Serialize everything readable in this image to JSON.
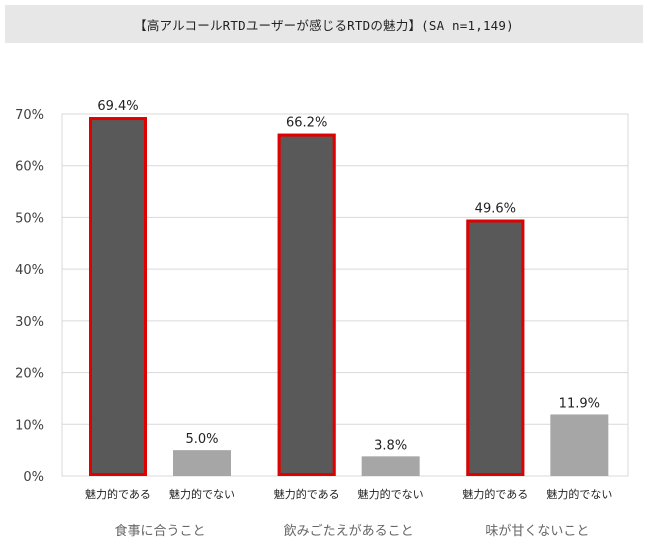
{
  "title": "【高アルコールRTDユーザーが感じるRTDの魅力】(SA n=1,149)",
  "chart_data": {
    "type": "bar",
    "title": "【高アルコールRTDユーザーが感じるRTDの魅力】(SA n=1,149)",
    "ylim": [
      0,
      70
    ],
    "y_ticks": [
      "0%",
      "10%",
      "20%",
      "30%",
      "40%",
      "50%",
      "60%",
      "70%"
    ],
    "grid": true,
    "groups": [
      {
        "label": "食事に合うこと",
        "bars": [
          {
            "label": "魅力的である",
            "value": 69.4,
            "value_label": "69.4%",
            "color": "#595959",
            "highlight": true
          },
          {
            "label": "魅力的でない",
            "value": 5.0,
            "value_label": "5.0%",
            "color": "#a6a6a6",
            "highlight": false
          }
        ]
      },
      {
        "label": "飲みごたえがあること",
        "bars": [
          {
            "label": "魅力的である",
            "value": 66.2,
            "value_label": "66.2%",
            "color": "#595959",
            "highlight": true
          },
          {
            "label": "魅力的でない",
            "value": 3.8,
            "value_label": "3.8%",
            "color": "#a6a6a6",
            "highlight": false
          }
        ]
      },
      {
        "label": "味が甘くないこと",
        "bars": [
          {
            "label": "魅力的である",
            "value": 49.6,
            "value_label": "49.6%",
            "color": "#595959",
            "highlight": true
          },
          {
            "label": "魅力的でない",
            "value": 11.9,
            "value_label": "11.9%",
            "color": "#a6a6a6",
            "highlight": false
          }
        ]
      }
    ],
    "highlight_color": "#e00000",
    "grid_color": "#d9d9d9"
  }
}
